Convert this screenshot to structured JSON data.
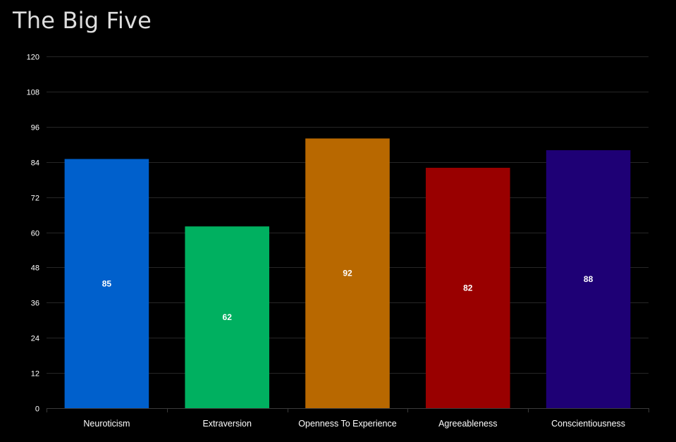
{
  "chart_data": {
    "type": "bar",
    "title": "The Big Five",
    "categories": [
      "Neuroticism",
      "Extraversion",
      "Openness To Experience",
      "Agreeableness",
      "Conscientiousness"
    ],
    "values": [
      85,
      62,
      92,
      82,
      88
    ],
    "colors": [
      "#0060cc",
      "#00b060",
      "#b86800",
      "#990000",
      "#1e0075"
    ],
    "ylim": [
      0,
      120
    ],
    "yticks": [
      0,
      12,
      24,
      36,
      48,
      60,
      72,
      84,
      96,
      108,
      120
    ],
    "grid": true,
    "legend": "none",
    "xlabel": "",
    "ylabel": ""
  }
}
